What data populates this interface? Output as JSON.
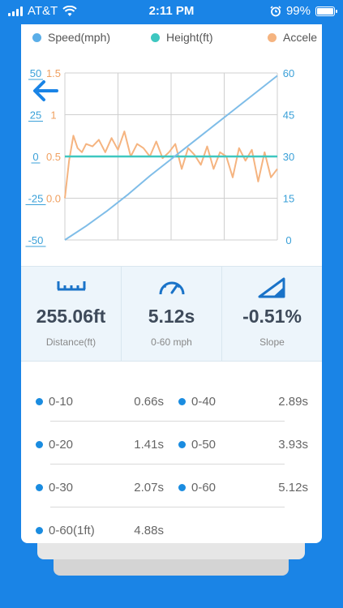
{
  "status_bar": {
    "carrier": "AT&T",
    "time": "2:11 PM",
    "battery": "99%"
  },
  "legend": [
    {
      "name": "Speed(mph)",
      "color": "#5aaee8"
    },
    {
      "name": "Height(ft)",
      "color": "#3ec7c0"
    },
    {
      "name": "Accele",
      "color": "#f5b480"
    }
  ],
  "chart_data": {
    "type": "line",
    "axes": {
      "height_left": {
        "ticks": [
          "50",
          "25",
          "0",
          "-25",
          "-50"
        ],
        "range": [
          -50,
          50
        ],
        "color": "#3aa0d8"
      },
      "accel_left": {
        "ticks": [
          "1.5",
          "1",
          "0.5",
          "0.0"
        ],
        "range": [
          -0.5,
          1.5
        ],
        "color": "#f0a060"
      },
      "speed_right": {
        "ticks": [
          "60",
          "45",
          "30",
          "15",
          "0"
        ],
        "range": [
          0,
          60
        ],
        "color": "#3aa0d8"
      }
    },
    "grid": true,
    "series": [
      {
        "name": "Speed(mph)",
        "axis": "speed_right",
        "color": "#7fbde8",
        "x": [
          0,
          0.1,
          0.2,
          0.3,
          0.4,
          0.5,
          0.6,
          0.7,
          0.8,
          0.9,
          1.0
        ],
        "values": [
          0,
          5,
          10.5,
          16.5,
          23,
          29,
          35,
          41,
          47,
          53,
          59
        ]
      },
      {
        "name": "Height(ft)",
        "axis": "height_left",
        "color": "#3ec7c0",
        "x": [
          0,
          1.0
        ],
        "values": [
          0,
          0
        ]
      },
      {
        "name": "Accele",
        "axis": "accel_left",
        "color": "#f5b480",
        "x": [
          0,
          0.02,
          0.04,
          0.06,
          0.08,
          0.1,
          0.13,
          0.16,
          0.19,
          0.22,
          0.25,
          0.28,
          0.31,
          0.34,
          0.37,
          0.4,
          0.43,
          0.46,
          0.49,
          0.52,
          0.55,
          0.58,
          0.61,
          0.64,
          0.67,
          0.7,
          0.73,
          0.76,
          0.79,
          0.82,
          0.85,
          0.88,
          0.91,
          0.94,
          0.97,
          1.0
        ],
        "values": [
          0.0,
          0.45,
          0.75,
          0.6,
          0.55,
          0.65,
          0.62,
          0.7,
          0.55,
          0.72,
          0.58,
          0.8,
          0.5,
          0.65,
          0.6,
          0.5,
          0.68,
          0.48,
          0.55,
          0.65,
          0.35,
          0.6,
          0.52,
          0.4,
          0.62,
          0.35,
          0.55,
          0.5,
          0.25,
          0.6,
          0.45,
          0.58,
          0.2,
          0.55,
          0.25,
          0.35
        ]
      }
    ]
  },
  "stats": [
    {
      "icon": "ruler-icon",
      "value": "255.06ft",
      "label": "Distance(ft)"
    },
    {
      "icon": "speedometer-icon",
      "value": "5.12s",
      "label": "0-60 mph"
    },
    {
      "icon": "slope-icon",
      "value": "-0.51%",
      "label": "Slope"
    }
  ],
  "splits": [
    {
      "label": "0-10",
      "time": "0.66s"
    },
    {
      "label": "0-40",
      "time": "2.89s"
    },
    {
      "label": "0-20",
      "time": "1.41s"
    },
    {
      "label": "0-50",
      "time": "3.93s"
    },
    {
      "label": "0-30",
      "time": "2.07s"
    },
    {
      "label": "0-60",
      "time": "5.12s"
    },
    {
      "label": "0-60(1ft)",
      "time": "4.88s"
    }
  ]
}
